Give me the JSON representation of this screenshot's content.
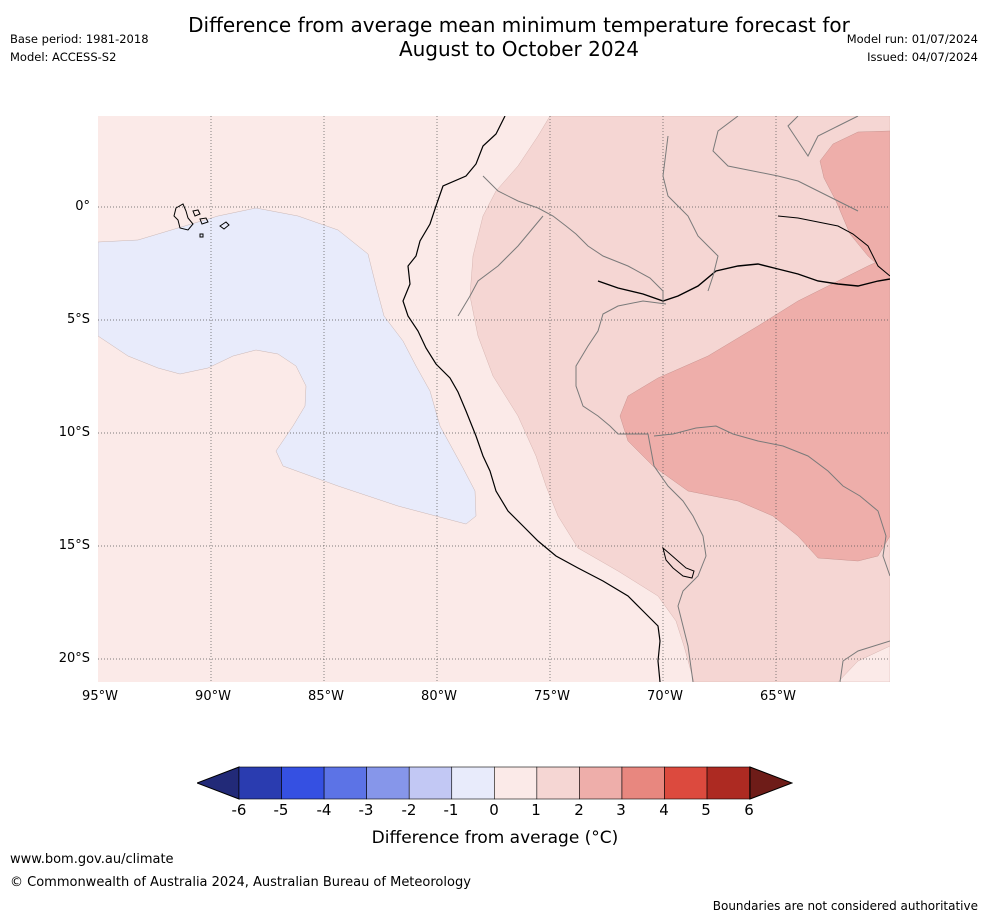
{
  "title": "Difference from average mean minimum temperature forecast for\nAugust to October 2024",
  "meta_left": {
    "base_period": "Base period: 1981-2018",
    "model": "Model: ACCESS-S2"
  },
  "meta_right": {
    "model_run": "Model run: 01/07/2024",
    "issued": "Issued: 04/07/2024"
  },
  "map": {
    "lat_labels": [
      "0°",
      "5°S",
      "10°S",
      "15°S",
      "20°S"
    ],
    "lon_labels": [
      "95°W",
      "90°W",
      "85°W",
      "80°W",
      "75°W",
      "70°W",
      "65°W"
    ],
    "colors": {
      "neg1_to_0": "#e8ebfb",
      "0_to_1": "#fbeae8",
      "1_to_2": "#f5d6d3",
      "2_to_3": "#eeaeaa"
    }
  },
  "colorbar": {
    "ticks": [
      "-6",
      "-5",
      "-4",
      "-3",
      "-2",
      "-1",
      "0",
      "1",
      "2",
      "3",
      "4",
      "5",
      "6"
    ],
    "colors": [
      "#222a78",
      "#2a3cb0",
      "#3550e2",
      "#5c73e6",
      "#8696ea",
      "#c2c8f4",
      "#e8ebfb",
      "#fbeae8",
      "#f5d6d3",
      "#eeaeaa",
      "#e8877f",
      "#dc4a3e",
      "#ad2a22",
      "#6e1c18"
    ],
    "label": "Difference from average (°C)"
  },
  "footer": {
    "url": "www.bom.gov.au/climate",
    "copyright": "© Commonwealth of Australia 2024, Australian Bureau of Meteorology",
    "note": "Boundaries are not considered authoritative"
  }
}
